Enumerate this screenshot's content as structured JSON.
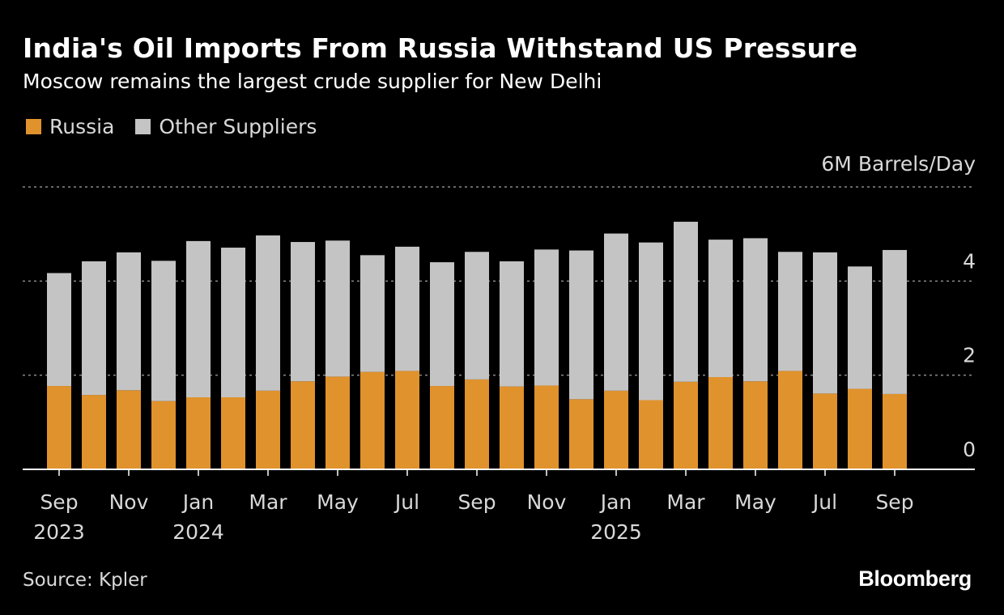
{
  "header": {
    "title": "India's Oil Imports From Russia Withstand US Pressure",
    "subtitle": "Moscow remains the largest crude supplier for New Delhi"
  },
  "footer": {
    "source": "Source: Kpler",
    "brand": "Bloomberg"
  },
  "colors": {
    "background": "#000000",
    "russia": "#e0922c",
    "other": "#c4c4c4",
    "grid": "#8a8a8a",
    "text": "#d9d9d9"
  },
  "chart_data": {
    "type": "bar",
    "stacked": true,
    "unit_label": "6M Barrels/Day",
    "ylim": [
      0,
      6
    ],
    "yticks": [
      0,
      2,
      4
    ],
    "grid": true,
    "legend_position": "top-left",
    "categories": [
      "Sep 2023",
      "Oct 2023",
      "Nov 2023",
      "Dec 2023",
      "Jan 2024",
      "Feb 2024",
      "Mar 2024",
      "Apr 2024",
      "May 2024",
      "Jun 2024",
      "Jul 2024",
      "Aug 2024",
      "Sep 2024",
      "Oct 2024",
      "Nov 2024",
      "Dec 2024",
      "Jan 2025",
      "Feb 2025",
      "Mar 2025",
      "Apr 2025",
      "May 2025",
      "Jun 2025",
      "Jul 2025",
      "Aug 2025",
      "Sep 2025"
    ],
    "x_tick_labels": [
      {
        "index": 0,
        "month": "Sep",
        "year": "2023"
      },
      {
        "index": 2,
        "month": "Nov",
        "year": ""
      },
      {
        "index": 4,
        "month": "Jan",
        "year": "2024"
      },
      {
        "index": 6,
        "month": "Mar",
        "year": ""
      },
      {
        "index": 8,
        "month": "May",
        "year": ""
      },
      {
        "index": 10,
        "month": "Jul",
        "year": ""
      },
      {
        "index": 12,
        "month": "Sep",
        "year": ""
      },
      {
        "index": 14,
        "month": "Nov",
        "year": ""
      },
      {
        "index": 16,
        "month": "Jan",
        "year": "2025"
      },
      {
        "index": 18,
        "month": "Mar",
        "year": ""
      },
      {
        "index": 20,
        "month": "May",
        "year": ""
      },
      {
        "index": 22,
        "month": "Jul",
        "year": ""
      },
      {
        "index": 24,
        "month": "Sep",
        "year": ""
      }
    ],
    "series": [
      {
        "name": "Russia",
        "values": [
          1.77,
          1.58,
          1.68,
          1.45,
          1.53,
          1.53,
          1.67,
          1.87,
          1.97,
          2.07,
          2.09,
          1.77,
          1.91,
          1.76,
          1.78,
          1.49,
          1.67,
          1.47,
          1.86,
          1.96,
          1.87,
          2.09,
          1.61,
          1.71,
          1.6
        ]
      },
      {
        "name": "Other Suppliers",
        "values": [
          2.4,
          2.84,
          2.93,
          2.98,
          3.32,
          3.18,
          3.3,
          2.96,
          2.89,
          2.48,
          2.64,
          2.63,
          2.71,
          2.66,
          2.89,
          3.16,
          3.34,
          3.35,
          3.4,
          2.92,
          3.04,
          2.53,
          3.0,
          2.6,
          3.06
        ]
      }
    ]
  }
}
